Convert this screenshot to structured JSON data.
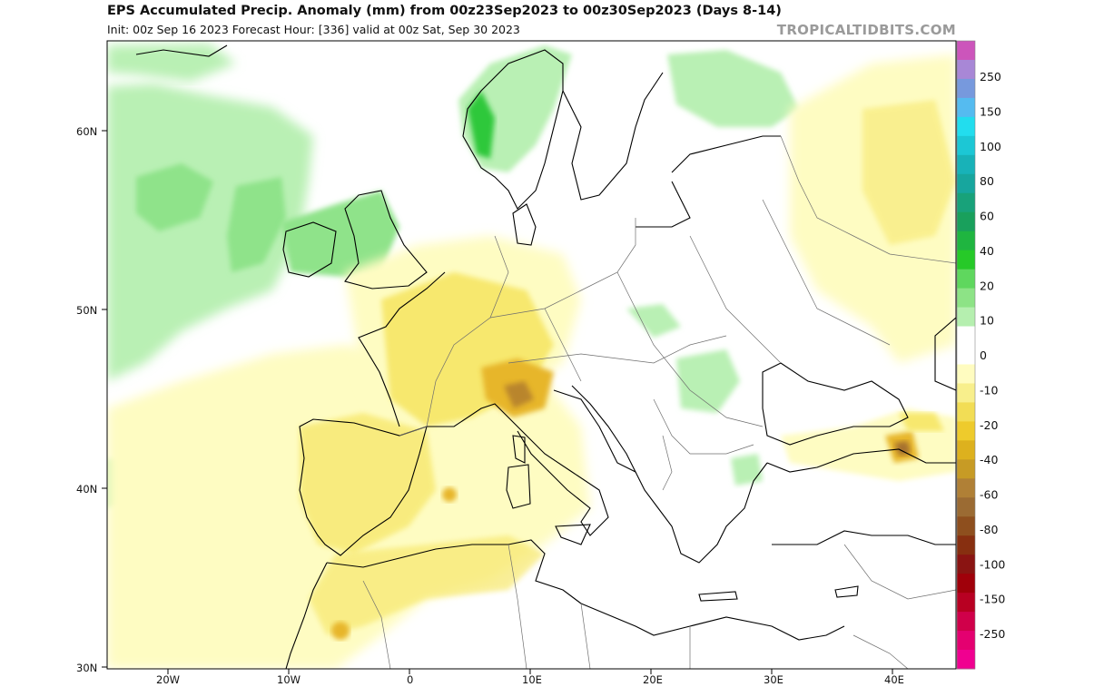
{
  "header": {
    "title": "EPS Accumulated Precip. Anomaly (mm) from 00z23Sep2023 to 00z30Sep2023 (Days 8-14)",
    "subtitle": "Init: 00z Sep 16 2023   Forecast Hour: [336]   valid at 00z Sat, Sep 30 2023",
    "brand": "TROPICALTIDBITS.COM"
  },
  "map": {
    "lat_labels": [
      "60N",
      "50N",
      "40N",
      "30N"
    ],
    "lon_labels": [
      "20W",
      "10W",
      "0",
      "10E",
      "20E",
      "30E",
      "40E"
    ],
    "colors": {
      "ocean_light_green": "#b9f0b4",
      "green": "#8fe38a",
      "dark_green": "#2fc83a",
      "pale_yellow": "#fefcc2",
      "yellow": "#f7e86e",
      "orange": "#e7b62c",
      "brown": "#a6712f",
      "coast": "#000000",
      "border": "#6e6e6e"
    }
  },
  "colorbar": {
    "labels": [
      "250",
      "150",
      "100",
      "80",
      "60",
      "40",
      "20",
      "10",
      "0",
      "-10",
      "-20",
      "-40",
      "-60",
      "-80",
      "-100",
      "-150",
      "-250"
    ],
    "colors": [
      "#cc55bb",
      "#a887d6",
      "#7799dd",
      "#55bbf0",
      "#22ddee",
      "#1cc7d5",
      "#18b2b8",
      "#17a69e",
      "#18a27a",
      "#19a05c",
      "#1fb540",
      "#26c928",
      "#5fd75e",
      "#8de386",
      "#b5efaf",
      "#ffffff",
      "#ffffff",
      "#fffcc0",
      "#f8ef8c",
      "#f2dd55",
      "#eecb2c",
      "#ddb11e",
      "#c79b25",
      "#b08036",
      "#9b6b33",
      "#8e4f1e",
      "#872f10",
      "#8a1412",
      "#a0000a",
      "#b80022",
      "#d0004a",
      "#e40070",
      "#f00090"
    ]
  }
}
